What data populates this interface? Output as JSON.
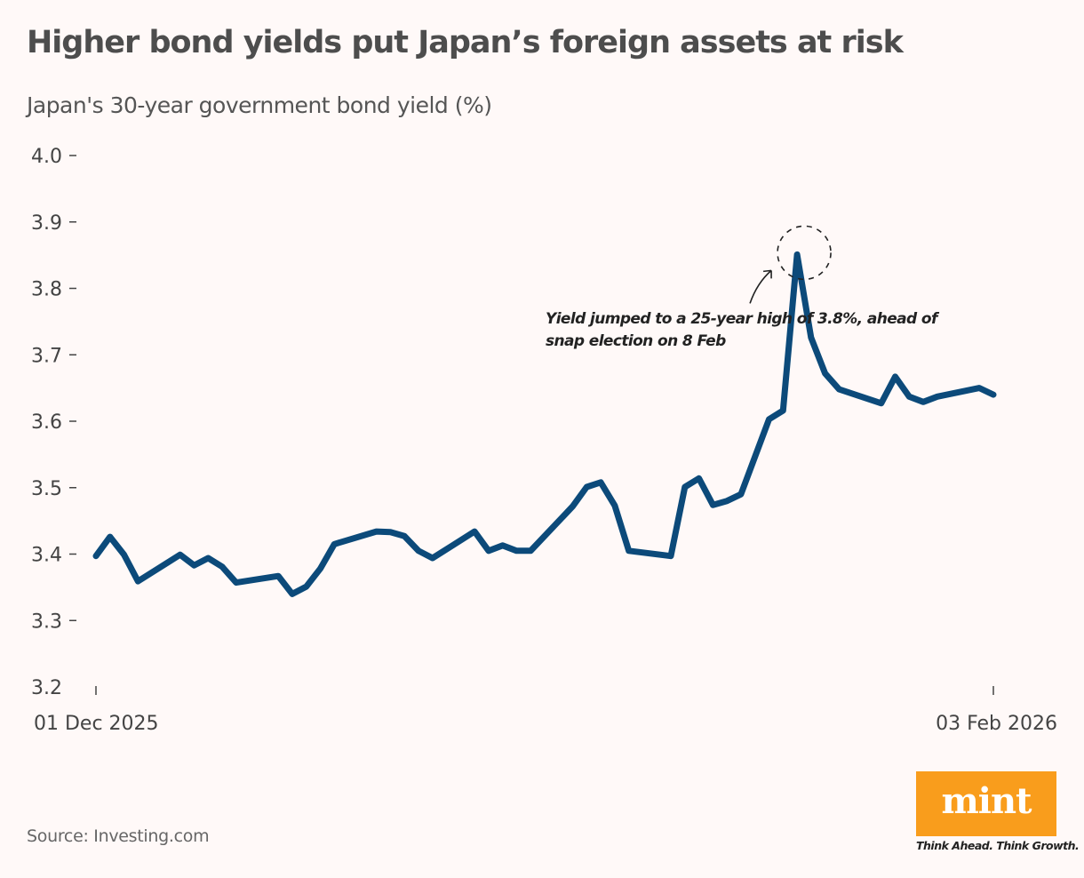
{
  "header": {
    "title": "Higher bond yields put Japan’s foreign assets at risk",
    "subtitle": "Japan's 30-year government bond yield (%)"
  },
  "footer": {
    "source": "Source: Investing.com",
    "logo_text": "mint",
    "tagline": "Think Ahead. Think Growth."
  },
  "colors": {
    "line": "#0c4a7a",
    "background": "#fff9f8",
    "logo": "#f99d1c"
  },
  "chart_data": {
    "type": "line",
    "title": "Higher bond yields put Japan’s foreign assets at risk",
    "ylabel": "Japan's 30-year government bond yield (%)",
    "ylim": [
      3.2,
      4.0
    ],
    "yticks": [
      "4.0",
      "3.9",
      "3.8",
      "3.7",
      "3.6",
      "3.5",
      "3.4",
      "3.3",
      "3.2"
    ],
    "xticks": [
      "01 Dec 2025",
      "03 Feb 2026"
    ],
    "grid": false,
    "x": [
      "2025-12-01",
      "2025-12-02",
      "2025-12-03",
      "2025-12-04",
      "2025-12-07",
      "2025-12-08",
      "2025-12-09",
      "2025-12-10",
      "2025-12-11",
      "2025-12-14",
      "2025-12-15",
      "2025-12-16",
      "2025-12-17",
      "2025-12-18",
      "2025-12-21",
      "2025-12-22",
      "2025-12-23",
      "2025-12-24",
      "2025-12-25",
      "2025-12-28",
      "2025-12-29",
      "2025-12-30",
      "2025-12-31",
      "2026-01-01",
      "2026-01-04",
      "2026-01-05",
      "2026-01-06",
      "2026-01-07",
      "2026-01-08",
      "2026-01-11",
      "2026-01-12",
      "2026-01-13",
      "2026-01-14",
      "2026-01-15",
      "2026-01-16",
      "2026-01-18",
      "2026-01-19",
      "2026-01-20",
      "2026-01-21",
      "2026-01-22",
      "2026-01-23",
      "2026-01-26",
      "2026-01-27",
      "2026-01-28",
      "2026-01-29",
      "2026-01-30",
      "2026-02-02",
      "2026-02-03"
    ],
    "series": [
      {
        "values": [
          3.397,
          3.426,
          3.399,
          3.359,
          3.399,
          3.383,
          3.394,
          3.381,
          3.357,
          3.367,
          3.34,
          3.351,
          3.378,
          3.415,
          3.434,
          3.433,
          3.427,
          3.405,
          3.394,
          3.434,
          3.405,
          3.413,
          3.405,
          3.405,
          3.472,
          3.501,
          3.508,
          3.473,
          3.405,
          3.397,
          3.501,
          3.514,
          3.474,
          3.48,
          3.49,
          3.603,
          3.616,
          3.851,
          3.726,
          3.672,
          3.648,
          3.627,
          3.667,
          3.637,
          3.629,
          3.637,
          3.65,
          3.64
        ]
      }
    ],
    "annotation": {
      "text_line1": "Yield jumped to a 25-year high of 3.8%, ahead of",
      "text_line2": "snap election on 8 Feb",
      "target_date": "2026-01-20"
    }
  }
}
